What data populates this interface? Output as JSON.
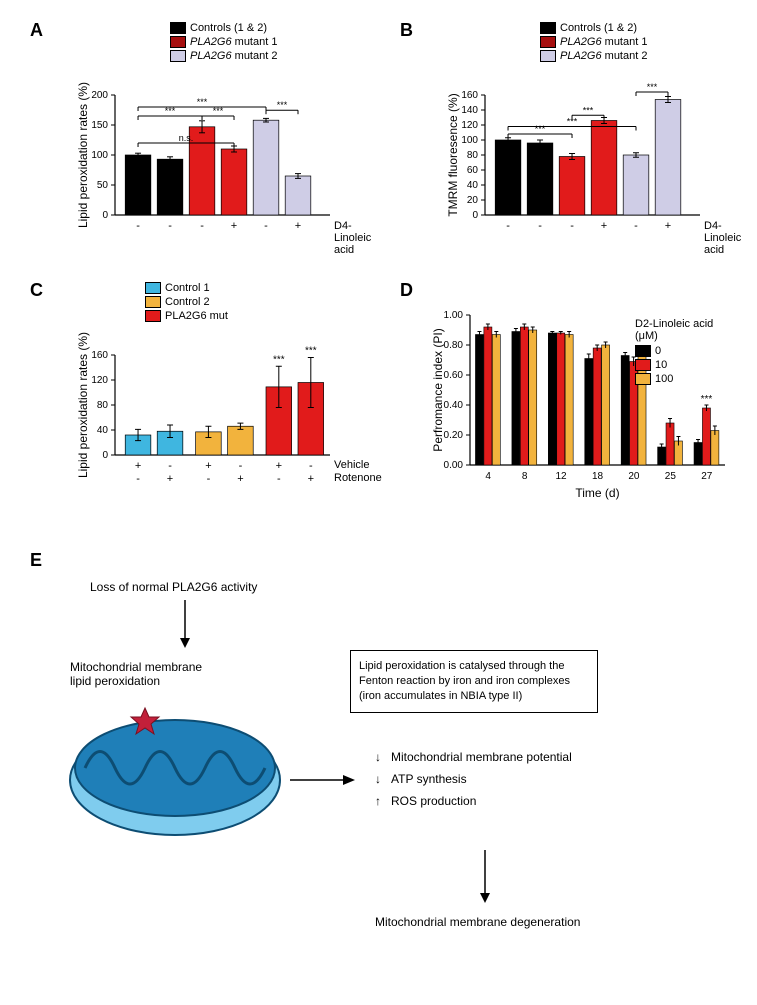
{
  "panelA": {
    "label": "A",
    "ylabel": "Lipid peroxidation rates (%)",
    "ylim": [
      0,
      200
    ],
    "ytick_step": 50,
    "legend": [
      {
        "label": "Controls (1 & 2)",
        "color": "#000000"
      },
      {
        "label": "PLA2G6 mutant 1",
        "color": "#a60f0f",
        "italicPrefix": "PLA2G6"
      },
      {
        "label": "PLA2G6 mutant 2",
        "color": "#cfcde6",
        "italicPrefix": "PLA2G6"
      }
    ],
    "bars": [
      {
        "value": 100,
        "err": 3,
        "color": "#000000"
      },
      {
        "value": 93,
        "err": 4,
        "color": "#000000"
      },
      {
        "value": 147,
        "err": 10,
        "color": "#e11b1b"
      },
      {
        "value": 110,
        "err": 5,
        "color": "#e11b1b"
      },
      {
        "value": 158,
        "err": 3,
        "color": "#cfcde6"
      },
      {
        "value": 65,
        "err": 4,
        "color": "#cfcde6"
      }
    ],
    "xmarks": [
      "-",
      "-",
      "-",
      "+",
      "-",
      "+"
    ],
    "xrow_label": "D4-Linoleic acid",
    "sig": [
      "n.s.",
      "***",
      "***",
      "***",
      "***"
    ]
  },
  "panelB": {
    "label": "B",
    "ylabel": "TMRM fluoresence (%)",
    "ylim": [
      0,
      160
    ],
    "ytick_step": 20,
    "legend": [
      {
        "label": "Controls (1 & 2)",
        "color": "#000000"
      },
      {
        "label": "PLA2G6 mutant 1",
        "color": "#a60f0f",
        "italicPrefix": "PLA2G6"
      },
      {
        "label": "PLA2G6 mutant 2",
        "color": "#cfcde6",
        "italicPrefix": "PLA2G6"
      }
    ],
    "bars": [
      {
        "value": 100,
        "err": 3,
        "color": "#000000"
      },
      {
        "value": 96,
        "err": 4,
        "color": "#000000"
      },
      {
        "value": 78,
        "err": 4,
        "color": "#e11b1b"
      },
      {
        "value": 126,
        "err": 4,
        "color": "#e11b1b"
      },
      {
        "value": 80,
        "err": 3,
        "color": "#cfcde6"
      },
      {
        "value": 154,
        "err": 4,
        "color": "#cfcde6"
      }
    ],
    "xmarks": [
      "-",
      "-",
      "-",
      "+",
      "-",
      "+"
    ],
    "xrow_label": "D4-Linoleic acid",
    "sig": [
      "***",
      "***",
      "***",
      "***"
    ]
  },
  "panelC": {
    "label": "C",
    "ylabel": "Lipid peroxidation rates (%)",
    "ylim": [
      0,
      160
    ],
    "ytick_step": 40,
    "legend": [
      {
        "label": "Control 1",
        "color": "#3fb6e0"
      },
      {
        "label": "Control 2",
        "color": "#f2b33d"
      },
      {
        "label": "PLA2G6 mut",
        "color": "#e11b1b"
      }
    ],
    "bars": [
      {
        "value": 32,
        "err": 9,
        "color": "#3fb6e0"
      },
      {
        "value": 38,
        "err": 10,
        "color": "#3fb6e0"
      },
      {
        "value": 37,
        "err": 9,
        "color": "#f2b33d"
      },
      {
        "value": 46,
        "err": 5,
        "color": "#f2b33d"
      },
      {
        "value": 109,
        "err": 33,
        "color": "#e11b1b"
      },
      {
        "value": 116,
        "err": 40,
        "color": "#e11b1b"
      }
    ],
    "xrows": [
      {
        "label": "Vehicle",
        "marks": [
          "+",
          "-",
          "+",
          "-",
          "+",
          "-"
        ]
      },
      {
        "label": "Rotenone",
        "marks": [
          "-",
          "+",
          "-",
          "+",
          "-",
          "+"
        ]
      }
    ],
    "sig": [
      "***",
      "***"
    ]
  },
  "panelD": {
    "label": "D",
    "ylabel": "Perfromance index (PI)",
    "xlabel": "Time (d)",
    "ylim": [
      0,
      1.0
    ],
    "ytick_step": 0.2,
    "legend_title": "D2-Linoleic acid (μM)",
    "legend": [
      {
        "label": "0",
        "color": "#000000"
      },
      {
        "label": "10",
        "color": "#e11b1b"
      },
      {
        "label": "100",
        "color": "#f2b33d"
      }
    ],
    "categories": [
      "4",
      "8",
      "12",
      "18",
      "20",
      "25",
      "27"
    ],
    "series": [
      {
        "color": "#000000",
        "values": [
          0.87,
          0.89,
          0.88,
          0.71,
          0.73,
          0.12,
          0.15
        ],
        "err": [
          0.02,
          0.02,
          0.01,
          0.03,
          0.02,
          0.02,
          0.02
        ]
      },
      {
        "color": "#e11b1b",
        "values": [
          0.92,
          0.92,
          0.88,
          0.78,
          0.69,
          0.28,
          0.38
        ],
        "err": [
          0.02,
          0.02,
          0.01,
          0.02,
          0.03,
          0.03,
          0.02
        ]
      },
      {
        "color": "#f2b33d",
        "values": [
          0.87,
          0.9,
          0.87,
          0.8,
          0.75,
          0.16,
          0.23
        ],
        "err": [
          0.02,
          0.02,
          0.02,
          0.02,
          0.03,
          0.03,
          0.03
        ]
      }
    ],
    "sig": "***"
  },
  "panelE": {
    "label": "E",
    "text_top": "Loss of normal PLA2G6 activity",
    "text_mid": "Mitochondrial membrane\nlipid peroxidation",
    "text_box": "Lipid peroxidation is catalysed\nthrough the Fenton reaction\nby iron and iron complexes\n(iron accumulates in NBIA type II)",
    "effects": [
      {
        "dir": "↓",
        "text": "Mitochondrial membrane potential"
      },
      {
        "dir": "↓",
        "text": "ATP synthesis"
      },
      {
        "dir": "↑",
        "text": "ROS production"
      }
    ],
    "text_bottom": "Mitochondrial membrane degeneration",
    "mito_fill": "#1f7fb8",
    "mito_light": "#7fccee",
    "mito_star": "#c2203a"
  }
}
